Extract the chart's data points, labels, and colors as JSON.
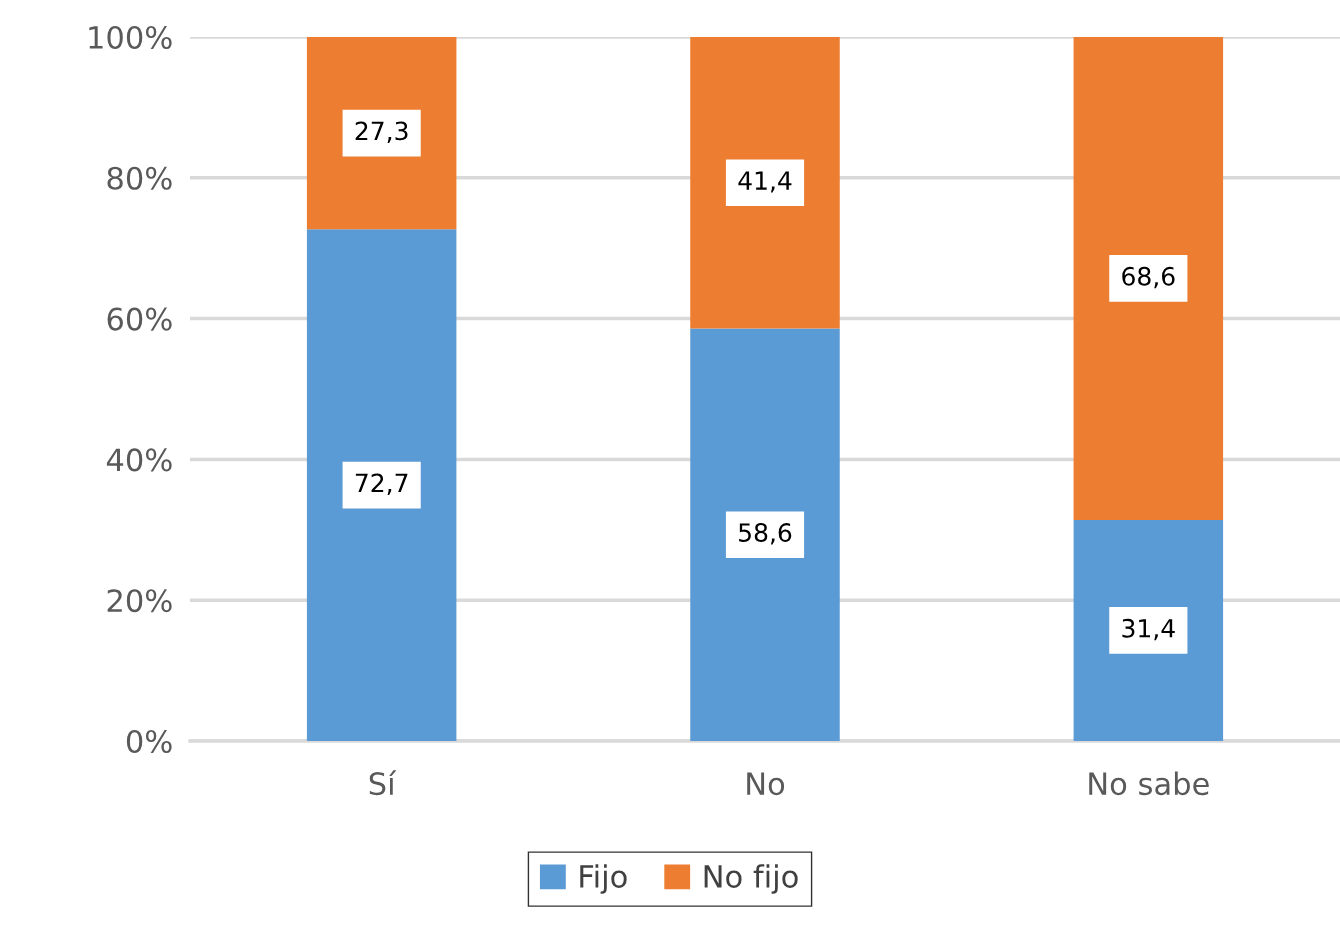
{
  "chart_data": {
    "type": "bar",
    "stacked": true,
    "categories": [
      "Sí",
      "No",
      "No sabe"
    ],
    "series": [
      {
        "name": "Fijo",
        "color": "#5b9bd5",
        "values": [
          72.7,
          58.6,
          31.4
        ],
        "value_labels": [
          "72,7",
          "58,6",
          "31,4"
        ]
      },
      {
        "name": "No fijo",
        "color": "#ed7d31",
        "values": [
          27.3,
          41.4,
          68.6
        ],
        "value_labels": [
          "27,3",
          "41,4",
          "68,6"
        ]
      }
    ],
    "ylim": [
      0,
      100
    ],
    "yticks": [
      {
        "value": 0,
        "label": "0%"
      },
      {
        "value": 20,
        "label": "20%"
      },
      {
        "value": 40,
        "label": "40%"
      },
      {
        "value": 60,
        "label": "60%"
      },
      {
        "value": 80,
        "label": "80%"
      },
      {
        "value": 100,
        "label": "100%"
      }
    ],
    "grid": "y",
    "legend": "bottom"
  }
}
